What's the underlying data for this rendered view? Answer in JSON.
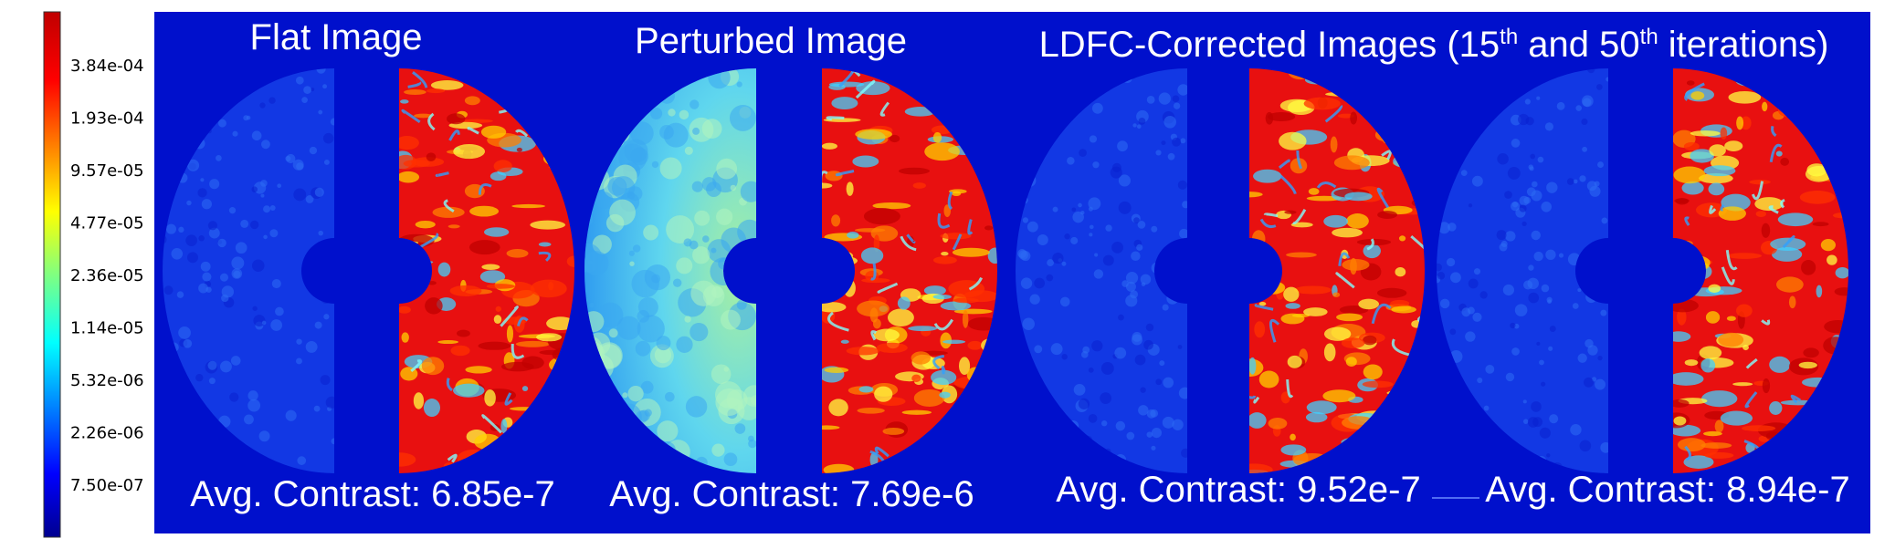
{
  "colorbar": {
    "ticks": [
      "3.84e-04",
      "1.93e-04",
      "9.57e-05",
      "4.77e-05",
      "2.36e-05",
      "1.14e-05",
      "5.32e-06",
      "2.26e-06",
      "7.50e-07"
    ]
  },
  "titles": {
    "flat": "Flat Image",
    "perturbed": "Perturbed Image",
    "corrected": {
      "a": "LDFC-Corrected Images (15",
      "b": "th",
      "c": " and 50",
      "d": "th",
      "e": " iterations)"
    }
  },
  "contrasts": [
    "Avg. Contrast: 6.85e-7",
    "Avg. Contrast: 7.69e-6",
    "Avg. Contrast: 9.52e-7",
    "Avg. Contrast: 8.94e-7"
  ]
}
